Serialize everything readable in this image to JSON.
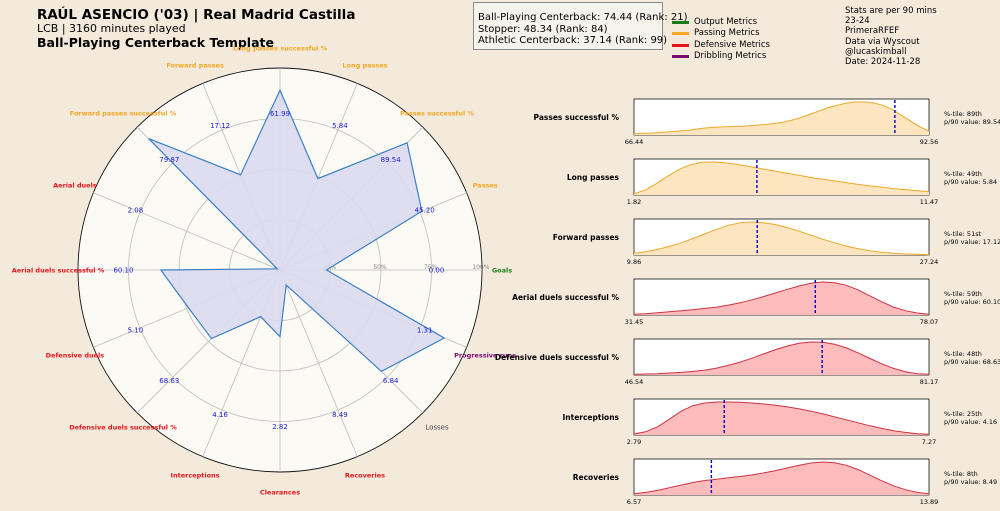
{
  "header": {
    "player_title": "RAÚL ASENCIO ('03) | Real Madrid Castilla",
    "subtitle": "LCB | 3160 minutes played",
    "template_title": "Ball-Playing Centerback Template"
  },
  "scores": [
    "Ball-Playing Centerback: 74.44 (Rank: 21)",
    "Stopper: 48.34 (Rank: 84)",
    "Athletic Centerback: 37.14 (Rank: 99)"
  ],
  "legend": [
    {
      "label": "Output Metrics",
      "color": "#1a7a1a"
    },
    {
      "label": "Passing Metrics",
      "color": "#f5a623"
    },
    {
      "label": "Defensive Metrics",
      "color": "#e8141a"
    },
    {
      "label": "Dribbling Metrics",
      "color": "#7a0a78"
    }
  ],
  "info": [
    "Stats are per 90 mins",
    "23-24",
    "PrimeraRFEF",
    "Data via Wyscout",
    "@lucaskimball",
    "Date: 2024-11-28"
  ],
  "colors": {
    "output": "#1a7a1a",
    "passing": "#f5a623",
    "defensive": "#e8141a",
    "dribbling": "#7a0a78",
    "losses": "#444444",
    "radar_fill": "#dcdaf0",
    "radar_line": "#3b80c2",
    "value_text": "#1a1ad4",
    "pass_fill": "#fde5c0",
    "pass_line": "#eaa92a",
    "def_fill": "#fcbcbc",
    "def_line": "#cc3344",
    "median_line": "#0000c8"
  },
  "chart_data": [
    {
      "type": "radar",
      "ring_labels": [
        "25%",
        "50%",
        "75%",
        "100%"
      ],
      "axes": [
        {
          "label": "Long passes successful %",
          "group": "passing",
          "value_label": "61.99",
          "percentile": 89
        },
        {
          "label": "Long passes",
          "group": "passing",
          "value_label": "5.84",
          "percentile": 49
        },
        {
          "label": "Passes successful %",
          "group": "passing",
          "value_label": "89.54",
          "percentile": 89
        },
        {
          "label": "Passes",
          "group": "passing",
          "value_label": "45.20",
          "percentile": 76
        },
        {
          "label": "Goals",
          "group": "output",
          "value_label": "0.00",
          "percentile": 23
        },
        {
          "label": "Progressive runs",
          "group": "dribbling",
          "value_label": "1.31",
          "percentile": 88
        },
        {
          "label": "Losses",
          "group": "losses",
          "value_label": "6.84",
          "percentile": 71
        },
        {
          "label": "Recoveries",
          "group": "defensive",
          "value_label": "8.49",
          "percentile": 8
        },
        {
          "label": "Clearances",
          "group": "defensive",
          "value_label": "2.82",
          "percentile": 33
        },
        {
          "label": "Interceptions",
          "group": "defensive",
          "value_label": "4.16",
          "percentile": 25
        },
        {
          "label": "Defensive duels successful %",
          "group": "defensive",
          "value_label": "68.63",
          "percentile": 48
        },
        {
          "label": "Defensive duels",
          "group": "defensive",
          "value_label": "5.10",
          "percentile": 49
        },
        {
          "label": "Aerial duels successful %",
          "group": "defensive",
          "value_label": "60.10",
          "percentile": 59
        },
        {
          "label": "Aerial duels",
          "group": "defensive",
          "value_label": "2.08",
          "percentile": 1
        },
        {
          "label": "Forward passes successful %",
          "group": "passing",
          "value_label": "79.87",
          "percentile": 92
        },
        {
          "label": "Forward passes",
          "group": "passing",
          "value_label": "17.12",
          "percentile": 51
        }
      ]
    },
    {
      "type": "area",
      "series": [
        {
          "name": "Passes successful %",
          "group": "passing",
          "min": 66.44,
          "max": 92.56,
          "value": 89.54,
          "percentile_label": "%-tile: 89th",
          "p90_label": "p/90 value: 89.54",
          "density": [
            0.04,
            0.05,
            0.06,
            0.08,
            0.1,
            0.12,
            0.15,
            0.19,
            0.22,
            0.24,
            0.25,
            0.26,
            0.27,
            0.29,
            0.31,
            0.34,
            0.38,
            0.44,
            0.52,
            0.62,
            0.72,
            0.82,
            0.9,
            0.96,
            1.0,
            1.0,
            0.97,
            0.9,
            0.78,
            0.6,
            0.42,
            0.25,
            0.12
          ]
        },
        {
          "name": "Long passes",
          "group": "passing",
          "min": 1.82,
          "max": 11.47,
          "value": 5.84,
          "percentile_label": "%-tile: 49th",
          "p90_label": "p/90 value: 5.84",
          "density": [
            0.04,
            0.15,
            0.35,
            0.58,
            0.78,
            0.92,
            0.99,
            1.0,
            0.98,
            0.93,
            0.87,
            0.81,
            0.75,
            0.69,
            0.63,
            0.57,
            0.51,
            0.46,
            0.41,
            0.36,
            0.31,
            0.27,
            0.23,
            0.19,
            0.16,
            0.13,
            0.1
          ]
        },
        {
          "name": "Forward passes",
          "group": "passing",
          "min": 9.86,
          "max": 27.24,
          "value": 17.12,
          "percentile_label": "%-tile: 51st",
          "p90_label": "p/90 value: 17.12",
          "density": [
            0.05,
            0.1,
            0.17,
            0.26,
            0.37,
            0.5,
            0.64,
            0.78,
            0.9,
            0.98,
            1.0,
            0.98,
            0.92,
            0.83,
            0.72,
            0.6,
            0.48,
            0.37,
            0.27,
            0.19,
            0.13,
            0.08,
            0.05,
            0.03,
            0.02,
            0.01
          ]
        },
        {
          "name": "Aerial duels successful %",
          "group": "defensive",
          "min": 31.45,
          "max": 78.07,
          "value": 60.1,
          "percentile_label": "%-tile: 59th",
          "p90_label": "p/90 value: 60.10",
          "density": [
            0.02,
            0.04,
            0.07,
            0.1,
            0.13,
            0.16,
            0.2,
            0.24,
            0.3,
            0.37,
            0.46,
            0.56,
            0.67,
            0.78,
            0.88,
            0.96,
            1.0,
            0.98,
            0.9,
            0.76,
            0.58,
            0.4,
            0.24,
            0.13,
            0.06,
            0.02
          ]
        },
        {
          "name": "Defensive duels successful %",
          "group": "defensive",
          "min": 46.54,
          "max": 81.17,
          "value": 68.63,
          "percentile_label": "%-tile: 48th",
          "p90_label": "p/90 value: 68.63",
          "density": [
            0.02,
            0.03,
            0.04,
            0.06,
            0.08,
            0.11,
            0.15,
            0.21,
            0.29,
            0.39,
            0.51,
            0.64,
            0.77,
            0.88,
            0.96,
            1.0,
            0.99,
            0.93,
            0.82,
            0.67,
            0.5,
            0.34,
            0.2,
            0.1,
            0.04,
            0.02
          ]
        },
        {
          "name": "Interceptions",
          "group": "defensive",
          "min": 2.79,
          "max": 7.27,
          "value": 4.16,
          "percentile_label": "%-tile: 25th",
          "p90_label": "p/90 value: 4.16",
          "density": [
            0.03,
            0.1,
            0.25,
            0.48,
            0.72,
            0.89,
            0.97,
            1.0,
            1.0,
            0.99,
            0.97,
            0.94,
            0.9,
            0.85,
            0.79,
            0.72,
            0.64,
            0.55,
            0.46,
            0.37,
            0.28,
            0.2,
            0.13,
            0.08,
            0.04,
            0.02
          ]
        },
        {
          "name": "Recoveries",
          "group": "defensive",
          "min": 6.57,
          "max": 13.89,
          "value": 8.49,
          "percentile_label": "%-tile: 8th",
          "p90_label": "p/90 value: 8.49",
          "density": [
            0.04,
            0.08,
            0.14,
            0.22,
            0.3,
            0.38,
            0.44,
            0.48,
            0.52,
            0.56,
            0.61,
            0.67,
            0.74,
            0.82,
            0.9,
            0.97,
            1.0,
            0.98,
            0.9,
            0.77,
            0.6,
            0.43,
            0.28,
            0.16,
            0.08,
            0.04
          ]
        }
      ]
    }
  ]
}
